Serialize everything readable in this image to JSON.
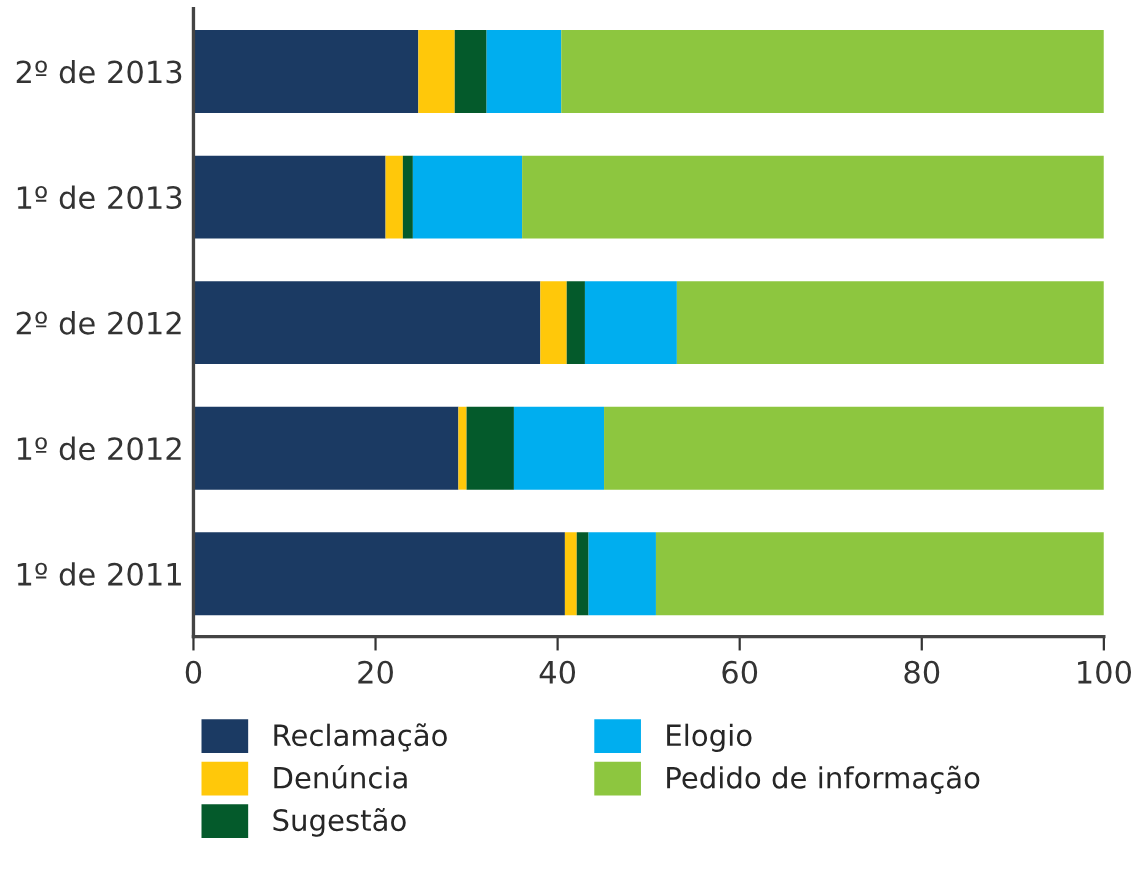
{
  "chart_data": {
    "type": "bar",
    "orientation": "horizontal",
    "stacked": true,
    "categories": [
      "2º de 2013",
      "1º de 2013",
      "2º de 2012",
      "1º de 2012",
      "1º de 2011"
    ],
    "series": [
      {
        "name": "Reclamação",
        "color": "#1b3a63",
        "values": [
          24.7,
          21.1,
          38.1,
          29.1,
          40.8
        ]
      },
      {
        "name": "Denúncia",
        "color": "#ffc80a",
        "values": [
          4.0,
          1.9,
          2.9,
          0.9,
          1.3
        ]
      },
      {
        "name": "Sugestão",
        "color": "#045a2b",
        "values": [
          3.5,
          1.1,
          2.0,
          5.2,
          1.3
        ]
      },
      {
        "name": "Elogio",
        "color": "#00aeef",
        "values": [
          8.2,
          12.0,
          10.1,
          9.9,
          7.4
        ]
      },
      {
        "name": "Pedido de informação",
        "color": "#8dc63f",
        "values": [
          59.6,
          63.9,
          46.9,
          54.9,
          49.2
        ]
      }
    ],
    "xlim": [
      0,
      100
    ],
    "xticks": [
      0,
      20,
      40,
      60,
      80,
      100
    ],
    "grid": false,
    "legend": "bottom"
  }
}
